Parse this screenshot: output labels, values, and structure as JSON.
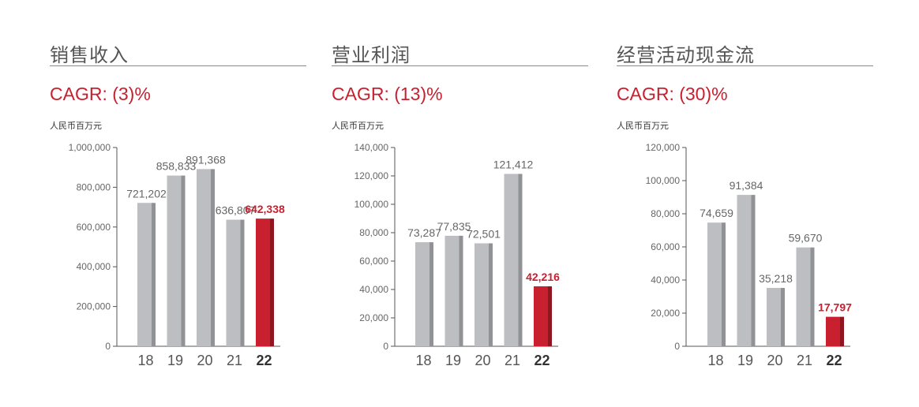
{
  "colors": {
    "accent_red": "#c8202f",
    "accent_red_dark": "#8f1520",
    "bar_grey": "#bdbec2",
    "bar_grey_dark": "#919296",
    "axis": "#555555"
  },
  "panels": [
    {
      "title": "销售收入",
      "cagr": "CAGR: (3)%",
      "unit": "人民币百万元"
    },
    {
      "title": "营业利润",
      "cagr": "CAGR: (13)%",
      "unit": "人民币百万元"
    },
    {
      "title": "经营活动现金流",
      "cagr": "CAGR: (30)%",
      "unit": "人民币百万元"
    }
  ],
  "chart_data": [
    {
      "type": "bar",
      "title": "销售收入",
      "ylabel": "人民币百万元",
      "categories": [
        "18",
        "19",
        "20",
        "21",
        "22"
      ],
      "values": [
        721202,
        858833,
        891368,
        636807,
        642338
      ],
      "value_labels": [
        "721,202",
        "858,833",
        "891,368",
        "636,807",
        "642,338"
      ],
      "highlight_index": 4,
      "ylim": [
        0,
        1000000
      ],
      "yticks": [
        0,
        200000,
        400000,
        600000,
        800000,
        1000000
      ],
      "ytick_labels": [
        "0",
        "200,000",
        "400,000",
        "600,000",
        "800,000",
        "1,000,000"
      ],
      "grid": false
    },
    {
      "type": "bar",
      "title": "营业利润",
      "ylabel": "人民币百万元",
      "categories": [
        "18",
        "19",
        "20",
        "21",
        "22"
      ],
      "values": [
        73287,
        77835,
        72501,
        121412,
        42216
      ],
      "value_labels": [
        "73,287",
        "77,835",
        "72,501",
        "121,412",
        "42,216"
      ],
      "highlight_index": 4,
      "ylim": [
        0,
        140000
      ],
      "yticks": [
        0,
        20000,
        40000,
        60000,
        80000,
        100000,
        120000,
        140000
      ],
      "ytick_labels": [
        "0",
        "20,000",
        "40,000",
        "60,000",
        "80,000",
        "100,000",
        "120,000",
        "140,000"
      ],
      "grid": false
    },
    {
      "type": "bar",
      "title": "经营活动现金流",
      "ylabel": "人民币百万元",
      "categories": [
        "18",
        "19",
        "20",
        "21",
        "22"
      ],
      "values": [
        74659,
        91384,
        35218,
        59670,
        17797
      ],
      "value_labels": [
        "74,659",
        "91,384",
        "35,218",
        "59,670",
        "17,797"
      ],
      "highlight_index": 4,
      "ylim": [
        0,
        120000
      ],
      "yticks": [
        0,
        20000,
        40000,
        60000,
        80000,
        100000,
        120000
      ],
      "ytick_labels": [
        "0",
        "20,000",
        "40,000",
        "60,000",
        "80,000",
        "100,000",
        "120,000"
      ],
      "grid": false
    }
  ]
}
